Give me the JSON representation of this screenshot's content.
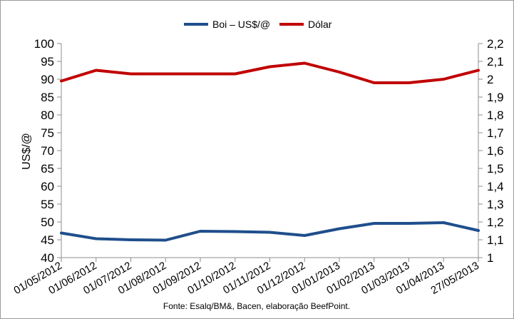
{
  "chart_data": {
    "type": "line",
    "title": "",
    "ylabel": "US$/@",
    "y2label": "",
    "source": "Fonte: Esalq/BM&, Bacen, elaboração BeefPoint.",
    "categories": [
      "01/05/2012",
      "01/06/2012",
      "01/07/2012",
      "01/08/2012",
      "01/09/2012",
      "01/10/2012",
      "01/11/2012",
      "01/12/2012",
      "01/01/2013",
      "01/02/2013",
      "01/03/2013",
      "01/04/2013",
      "27/05/2013"
    ],
    "ylim": [
      40,
      100
    ],
    "y_ticks": [
      "40",
      "45",
      "50",
      "55",
      "60",
      "65",
      "70",
      "75",
      "80",
      "85",
      "90",
      "95",
      "100"
    ],
    "y2lim": [
      1.0,
      2.2
    ],
    "y2_ticks": [
      "1",
      "1,1",
      "1,2",
      "1,3",
      "1,4",
      "1,5",
      "1,6",
      "1,7",
      "1,8",
      "1,9",
      "2",
      "2,1",
      "2,2"
    ],
    "grid": false,
    "legend_position": "top",
    "series": [
      {
        "name": "Boi – US$/@",
        "axis": "left",
        "color": "#1f4e8c",
        "values": [
          46.9,
          45.3,
          45.0,
          44.9,
          47.4,
          47.3,
          47.1,
          46.2,
          48.1,
          49.6,
          49.6,
          49.8,
          47.6
        ]
      },
      {
        "name": "Dólar",
        "axis": "right",
        "color": "#c00000",
        "values": [
          1.99,
          2.05,
          2.03,
          2.03,
          2.03,
          2.03,
          2.07,
          2.09,
          2.04,
          1.98,
          1.98,
          2.0,
          2.05
        ]
      }
    ]
  }
}
